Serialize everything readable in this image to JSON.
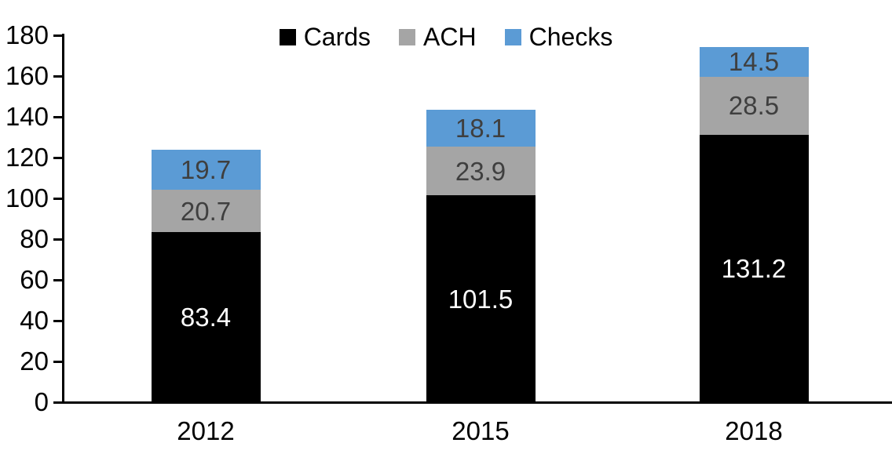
{
  "chart_data": {
    "type": "bar",
    "stacked": true,
    "background": "#ffffff",
    "categories": [
      "2012",
      "2015",
      "2018"
    ],
    "series": [
      {
        "name": "Cards",
        "color": "#000000",
        "label_color": "#ffffff",
        "values": [
          83.4,
          101.5,
          131.2
        ]
      },
      {
        "name": "ACH",
        "color": "#a5a5a5",
        "label_color": "#3f3f3f",
        "values": [
          20.7,
          23.9,
          28.5
        ]
      },
      {
        "name": "Checks",
        "color": "#5b9bd5",
        "label_color": "#3f3f3f",
        "values": [
          19.7,
          18.1,
          14.5
        ]
      }
    ],
    "y_axis": {
      "min": 0,
      "max": 180,
      "tick_interval": 20,
      "tick_labels": [
        "0",
        "20",
        "40",
        "60",
        "80",
        "100",
        "120",
        "140",
        "160",
        "180"
      ]
    },
    "x_axis": {
      "tick_labels": [
        "2012",
        "2015",
        "2018"
      ]
    },
    "legend": {
      "position": "top",
      "entries": [
        "Cards",
        "ACH",
        "Checks"
      ]
    },
    "grid": false,
    "axis_color": "#000000"
  }
}
